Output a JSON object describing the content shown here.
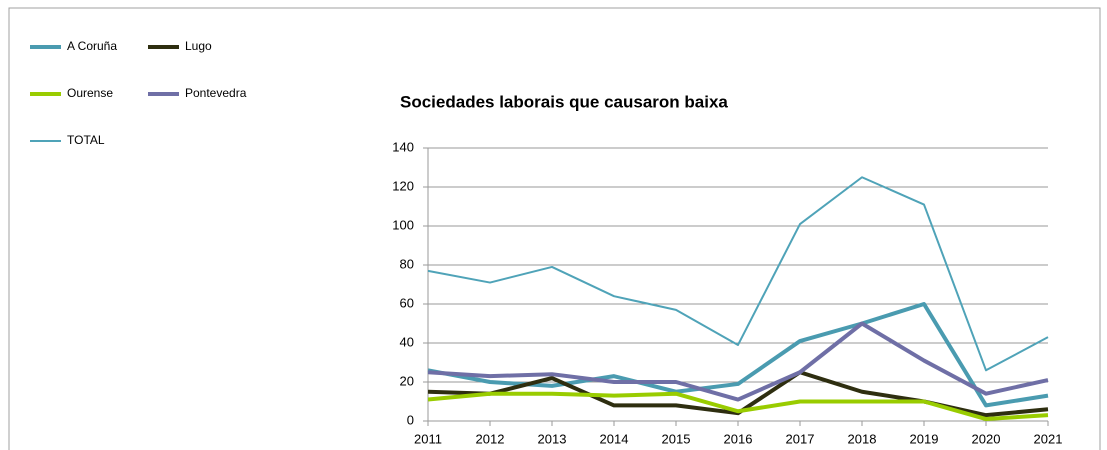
{
  "chart_data": {
    "type": "line",
    "title": "Sociedades laborais que causaron baixa",
    "categories": [
      "2011",
      "2012",
      "2013",
      "2014",
      "2015",
      "2016",
      "2017",
      "2018",
      "2019",
      "2020",
      "2021"
    ],
    "series": [
      {
        "name": "A Coruña",
        "color": "#4a9bb0",
        "width": 4,
        "values": [
          26,
          20,
          18,
          23,
          15,
          19,
          41,
          50,
          60,
          8,
          13
        ]
      },
      {
        "name": "Lugo",
        "color": "#2e2e10",
        "width": 4,
        "values": [
          15,
          14,
          22,
          8,
          8,
          4,
          25,
          15,
          10,
          3,
          6
        ]
      },
      {
        "name": "Ourense",
        "color": "#99cc00",
        "width": 4,
        "values": [
          11,
          14,
          14,
          13,
          14,
          5,
          10,
          10,
          10,
          1,
          3
        ]
      },
      {
        "name": "Pontevedra",
        "color": "#6f6fa6",
        "width": 4,
        "values": [
          25,
          23,
          24,
          20,
          20,
          11,
          25,
          50,
          31,
          14,
          21
        ]
      },
      {
        "name": "TOTAL",
        "color": "#4fa3b8",
        "width": 2,
        "values": [
          77,
          71,
          79,
          64,
          57,
          39,
          101,
          125,
          111,
          26,
          43
        ]
      }
    ],
    "ylim": [
      0,
      140
    ],
    "yticks": [
      0,
      20,
      40,
      60,
      80,
      100,
      120,
      140
    ],
    "grid": true,
    "legend": "top-left"
  }
}
